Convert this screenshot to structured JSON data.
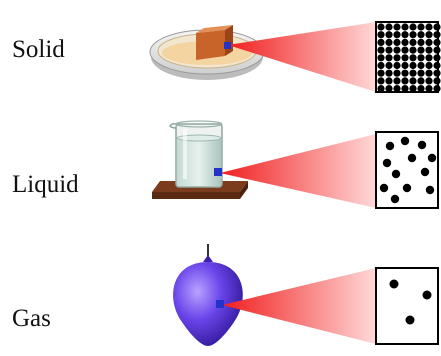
{
  "states": [
    {
      "key": "solid",
      "label": "Solid"
    },
    {
      "key": "liquid",
      "label": "Liquid"
    },
    {
      "key": "gas",
      "label": "Gas"
    }
  ],
  "colors": {
    "magnifier_beam": "#ee2a2a",
    "focus_point": "#2233cc",
    "particle": "#000000",
    "balloon": "#5a36e0",
    "wood_base": "#6b3418",
    "solid_block": "#c8642a"
  },
  "icons": [
    "petri-dish-icon",
    "beaker-icon",
    "balloon-icon"
  ]
}
